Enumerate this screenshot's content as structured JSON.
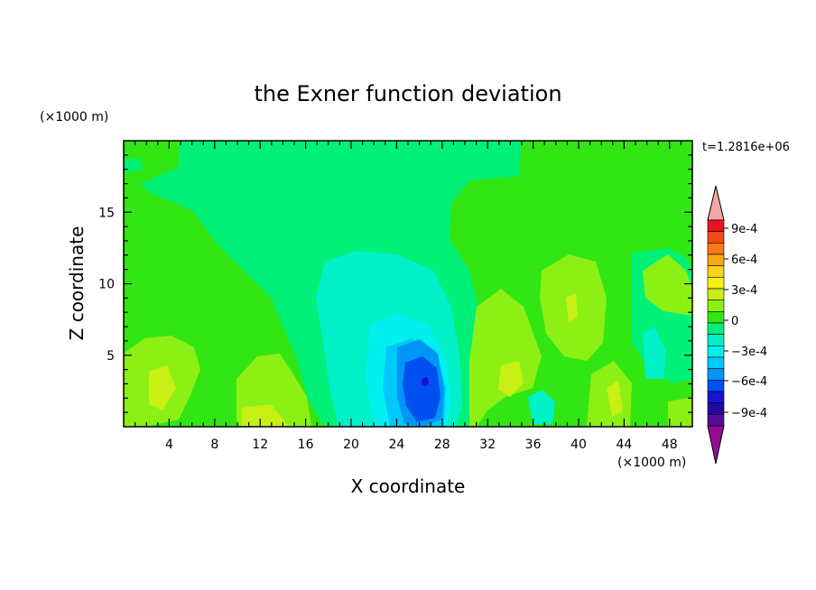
{
  "chart_data": {
    "type": "heatmap",
    "title": "the Exner function deviation",
    "xlabel": "X coordinate",
    "ylabel": "Z coordinate",
    "x_unit": "(×1000 m)",
    "y_unit": "(×1000 m)",
    "time_label": "t=1.2816e+06",
    "xlim": [
      0,
      50
    ],
    "ylim": [
      0,
      20
    ],
    "x_ticks": [
      4,
      8,
      12,
      16,
      20,
      24,
      28,
      32,
      36,
      40,
      44,
      48
    ],
    "y_ticks": [
      5,
      10,
      15
    ],
    "colorbar": {
      "levels": [
        -0.0009,
        -0.0006,
        -0.0003,
        0,
        0.0003,
        0.0006,
        0.0009
      ],
      "labels": [
        "9e-4",
        "6e-4",
        "3e-4",
        "0",
        "−3e-4",
        "−6e-4",
        "−9e-4"
      ],
      "colors": [
        "#f4a6a6",
        "#e8141e",
        "#f24a14",
        "#f77a14",
        "#f9a814",
        "#fad214",
        "#f8f014",
        "#c8f014",
        "#8cf014",
        "#32e614",
        "#00f078",
        "#00f0c8",
        "#00f0f0",
        "#00c8f8",
        "#0096f8",
        "#0050f0",
        "#1414d2",
        "#1e0aa0",
        "#5a0a9a",
        "#960a96"
      ]
    },
    "field": {
      "background_level": 0,
      "features": [
        {
          "x": 1.5,
          "z": 14.5,
          "value": -0.00012
        },
        {
          "x": 17,
          "z": 12,
          "value": -0.0001
        },
        {
          "x": 23,
          "z": 8,
          "value": -0.00018
        },
        {
          "x": 26,
          "z": 3.5,
          "value": -0.00062
        },
        {
          "x": 24.5,
          "z": 6,
          "value": -0.00035
        },
        {
          "x": 3,
          "z": 3.5,
          "value": 0.00022
        },
        {
          "x": 14,
          "z": 3,
          "value": 0.00015
        },
        {
          "x": 33,
          "z": 3.5,
          "value": 0.00018
        },
        {
          "x": 39.5,
          "z": 7,
          "value": 0.00018
        },
        {
          "x": 44,
          "z": 2.5,
          "value": 0.00015
        },
        {
          "x": 36,
          "z": 1,
          "value": -6e-05
        },
        {
          "x": 47.5,
          "z": 5,
          "value": -8e-05
        }
      ]
    }
  }
}
